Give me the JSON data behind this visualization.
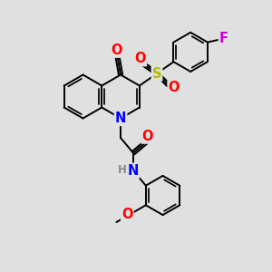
{
  "background_color": "#e0e0e0",
  "bond_color": "#000000",
  "bond_width": 1.4,
  "atom_colors": {
    "O": "#ff0000",
    "N": "#0000ff",
    "S": "#b8b800",
    "F": "#cc00cc",
    "H": "#888888",
    "C": "#000000"
  },
  "font_size": 8.5
}
